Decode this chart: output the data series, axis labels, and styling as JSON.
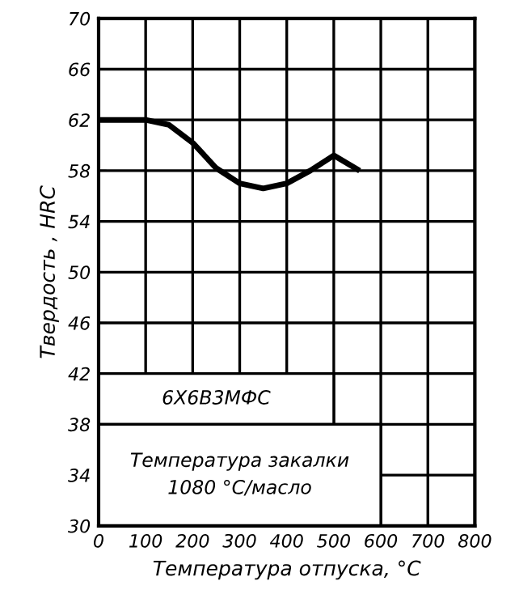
{
  "chart_data": {
    "type": "line",
    "xlabel": "Температура отпуска, °С",
    "ylabel": "Твердость , HRC",
    "x": [
      0,
      50,
      100,
      150,
      200,
      250,
      300,
      350,
      400,
      450,
      500,
      550
    ],
    "series": [
      {
        "color": "#000000",
        "values": [
          62,
          62,
          62,
          61.6,
          60.2,
          58.2,
          57.0,
          56.6,
          57.0,
          58.0,
          59.2,
          58.1
        ]
      }
    ],
    "xlim": [
      0,
      800
    ],
    "xticks": [
      0,
      100,
      200,
      300,
      400,
      500,
      600,
      700,
      800
    ],
    "ylim": [
      30,
      70
    ],
    "yticks": [
      30,
      34,
      38,
      42,
      46,
      50,
      54,
      58,
      62,
      66,
      70
    ],
    "grid": true,
    "marker": "none",
    "line_style": "solid",
    "annotations": [
      "6Х6В3МФС",
      "Температура закалки\n1080 °С/масло"
    ]
  }
}
